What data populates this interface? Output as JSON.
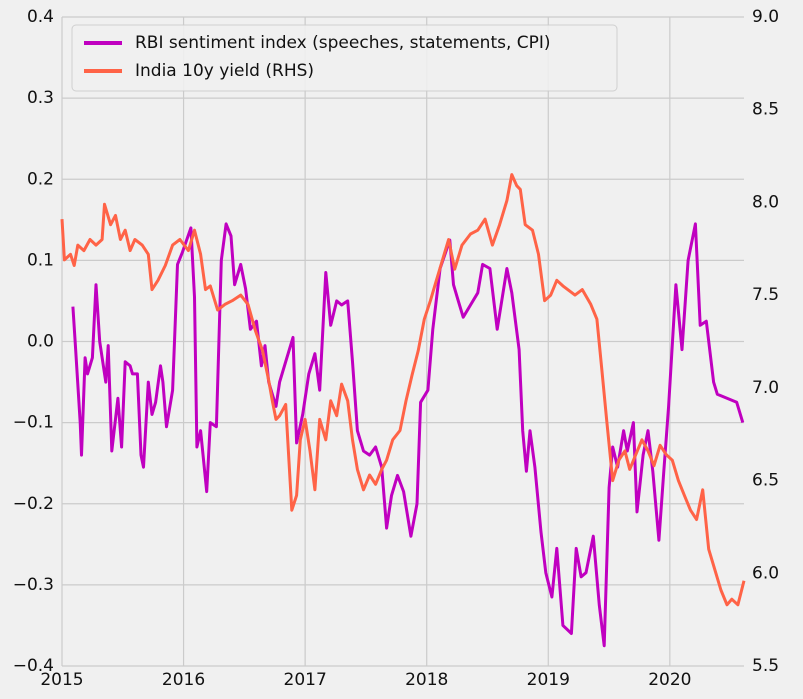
{
  "chart_data": {
    "type": "line",
    "xlim": [
      2015,
      2020.61
    ],
    "xticks": [
      2015,
      2016,
      2017,
      2018,
      2019,
      2020
    ],
    "ylim": [
      -0.4,
      0.4
    ],
    "yticks": [
      {
        "value": -0.4,
        "label": "−0.4"
      },
      {
        "value": -0.3,
        "label": "−0.3"
      },
      {
        "value": -0.2,
        "label": "−0.2"
      },
      {
        "value": -0.1,
        "label": "−0.1"
      },
      {
        "value": 0,
        "label": "0.0"
      },
      0.1,
      0.2,
      0.3,
      0.4
    ],
    "y2lim": [
      5.5,
      9.0
    ],
    "y2ticks": [
      5.5,
      {
        "value": 6,
        "label": "6.0"
      },
      6.5,
      {
        "value": 7,
        "label": "7.0"
      },
      7.5,
      {
        "value": 8,
        "label": "8.0"
      },
      8.5,
      {
        "value": 9,
        "label": "9.0"
      }
    ],
    "grid": true,
    "legend": "upper left",
    "series": [
      {
        "name": "RBI sentiment index (speeches, statements, CPI)",
        "color": "#c000c0",
        "x": [
          2015.09,
          2015.11,
          2015.15,
          2015.16,
          2015.19,
          2015.21,
          2015.25,
          2015.28,
          2015.31,
          2015.36,
          2015.38,
          2015.41,
          2015.46,
          2015.49,
          2015.52,
          2015.56,
          2015.58,
          2015.62,
          2015.65,
          2015.67,
          2015.71,
          2015.74,
          2015.77,
          2015.81,
          2015.83,
          2015.86,
          2015.91,
          2015.95,
          2015.99,
          2016.06,
          2016.09,
          2016.11,
          2016.14,
          2016.19,
          2016.22,
          2016.27,
          2016.31,
          2016.35,
          2016.39,
          2016.42,
          2016.47,
          2016.51,
          2016.55,
          2016.6,
          2016.64,
          2016.67,
          2016.7,
          2016.73,
          2016.76,
          2016.79,
          2016.85,
          2016.9,
          2016.93,
          2016.98,
          2017.03,
          2017.08,
          2017.12,
          2017.17,
          2017.21,
          2017.26,
          2017.3,
          2017.35,
          2017.39,
          2017.43,
          2017.48,
          2017.53,
          2017.58,
          2017.63,
          2017.67,
          2017.71,
          2017.76,
          2017.81,
          2017.87,
          2017.92,
          2017.95,
          2018.01,
          2018.05,
          2018.11,
          2018.19,
          2018.22,
          2018.26,
          2018.3,
          2018.36,
          2018.42,
          2018.46,
          2018.52,
          2018.58,
          2018.66,
          2018.7,
          2018.76,
          2018.79,
          2018.82,
          2018.85,
          2018.89,
          2018.94,
          2018.98,
          2019.03,
          2019.07,
          2019.12,
          2019.19,
          2019.23,
          2019.27,
          2019.31,
          2019.37,
          2019.42,
          2019.46,
          2019.5,
          2019.53,
          2019.57,
          2019.62,
          2019.65,
          2019.7,
          2019.73,
          2019.78,
          2019.82,
          2019.86,
          2019.91,
          2019.95,
          2019.99,
          2020.05,
          2020.1,
          2020.15,
          2020.21,
          2020.25,
          2020.3,
          2020.36,
          2020.39,
          2020.55,
          2020.6
        ],
        "values": [
          0.043,
          -0.005,
          -0.1,
          -0.14,
          -0.02,
          -0.04,
          -0.02,
          0.07,
          0,
          -0.05,
          -0.005,
          -0.135,
          -0.07,
          -0.13,
          -0.025,
          -0.03,
          -0.04,
          -0.04,
          -0.14,
          -0.155,
          -0.05,
          -0.09,
          -0.075,
          -0.03,
          -0.05,
          -0.105,
          -0.06,
          0.095,
          0.11,
          0.14,
          0.055,
          -0.13,
          -0.11,
          -0.185,
          -0.1,
          -0.105,
          0.1,
          0.145,
          0.13,
          0.07,
          0.095,
          0.065,
          0.015,
          0.025,
          -0.03,
          -0.005,
          -0.05,
          -0.065,
          -0.08,
          -0.05,
          -0.02,
          0.005,
          -0.125,
          -0.09,
          -0.04,
          -0.015,
          -0.06,
          0.085,
          0.02,
          0.05,
          0.045,
          0.05,
          -0.025,
          -0.11,
          -0.135,
          -0.14,
          -0.13,
          -0.155,
          -0.23,
          -0.19,
          -0.165,
          -0.185,
          -0.24,
          -0.2,
          -0.075,
          -0.06,
          0.015,
          0.09,
          0.125,
          0.07,
          0.05,
          0.03,
          0.045,
          0.06,
          0.095,
          0.09,
          0.015,
          0.09,
          0.06,
          -0.01,
          -0.11,
          -0.16,
          -0.11,
          -0.155,
          -0.235,
          -0.285,
          -0.315,
          -0.255,
          -0.35,
          -0.36,
          -0.255,
          -0.29,
          -0.285,
          -0.24,
          -0.325,
          -0.375,
          -0.18,
          -0.13,
          -0.155,
          -0.11,
          -0.135,
          -0.1,
          -0.21,
          -0.14,
          -0.11,
          -0.16,
          -0.245,
          -0.16,
          -0.08,
          0.07,
          -0.01,
          0.1,
          0.145,
          0.02,
          0.025,
          -0.05,
          -0.065,
          -0.075,
          -0.1
        ]
      },
      {
        "name": "India 10y yield (RHS)",
        "color": "#ff6347",
        "axis": "y2",
        "x": [
          2015,
          2015.02,
          2015.07,
          2015.1,
          2015.13,
          2015.18,
          2015.23,
          2015.28,
          2015.33,
          2015.35,
          2015.4,
          2015.44,
          2015.48,
          2015.52,
          2015.56,
          2015.6,
          2015.66,
          2015.71,
          2015.74,
          2015.79,
          2015.85,
          2015.91,
          2015.97,
          2016.04,
          2016.09,
          2016.14,
          2016.18,
          2016.22,
          2016.28,
          2016.34,
          2016.4,
          2016.47,
          2016.53,
          2016.59,
          2016.65,
          2016.7,
          2016.73,
          2016.76,
          2016.79,
          2016.84,
          2016.89,
          2016.93,
          2016.96,
          2017,
          2017.04,
          2017.08,
          2017.12,
          2017.17,
          2017.21,
          2017.26,
          2017.3,
          2017.35,
          2017.39,
          2017.43,
          2017.48,
          2017.53,
          2017.58,
          2017.63,
          2017.67,
          2017.72,
          2017.78,
          2017.83,
          2017.88,
          2017.93,
          2017.98,
          2018.03,
          2018.08,
          2018.13,
          2018.18,
          2018.23,
          2018.29,
          2018.36,
          2018.42,
          2018.48,
          2018.54,
          2018.6,
          2018.66,
          2018.7,
          2018.74,
          2018.77,
          2018.81,
          2018.87,
          2018.92,
          2018.97,
          2019.02,
          2019.07,
          2019.12,
          2019.16,
          2019.22,
          2019.28,
          2019.35,
          2019.4,
          2019.44,
          2019.48,
          2019.53,
          2019.58,
          2019.63,
          2019.67,
          2019.72,
          2019.77,
          2019.82,
          2019.87,
          2019.92,
          2019.97,
          2020.02,
          2020.07,
          2020.12,
          2020.17,
          2020.22,
          2020.27,
          2020.32,
          2020.37,
          2020.42,
          2020.47,
          2020.51,
          2020.56,
          2020.61
        ],
        "values": [
          7.91,
          7.69,
          7.72,
          7.66,
          7.77,
          7.74,
          7.8,
          7.77,
          7.8,
          7.99,
          7.88,
          7.93,
          7.8,
          7.85,
          7.74,
          7.8,
          7.77,
          7.72,
          7.53,
          7.58,
          7.66,
          7.77,
          7.8,
          7.74,
          7.85,
          7.72,
          7.53,
          7.55,
          7.42,
          7.45,
          7.47,
          7.5,
          7.45,
          7.31,
          7.2,
          7.04,
          6.93,
          6.83,
          6.85,
          6.91,
          6.34,
          6.42,
          6.72,
          6.83,
          6.66,
          6.45,
          6.83,
          6.72,
          6.93,
          6.85,
          7.02,
          6.93,
          6.72,
          6.56,
          6.45,
          6.53,
          6.48,
          6.56,
          6.61,
          6.72,
          6.77,
          6.93,
          7.07,
          7.2,
          7.37,
          7.47,
          7.58,
          7.69,
          7.8,
          7.64,
          7.77,
          7.83,
          7.85,
          7.91,
          7.77,
          7.88,
          8.01,
          8.15,
          8.09,
          8.07,
          7.88,
          7.85,
          7.72,
          7.47,
          7.5,
          7.58,
          7.55,
          7.53,
          7.5,
          7.53,
          7.45,
          7.37,
          7.1,
          6.83,
          6.5,
          6.61,
          6.66,
          6.56,
          6.64,
          6.72,
          6.66,
          6.58,
          6.69,
          6.64,
          6.61,
          6.5,
          6.42,
          6.34,
          6.29,
          6.45,
          6.13,
          6.02,
          5.91,
          5.83,
          5.86,
          5.83,
          5.96
        ]
      }
    ]
  }
}
